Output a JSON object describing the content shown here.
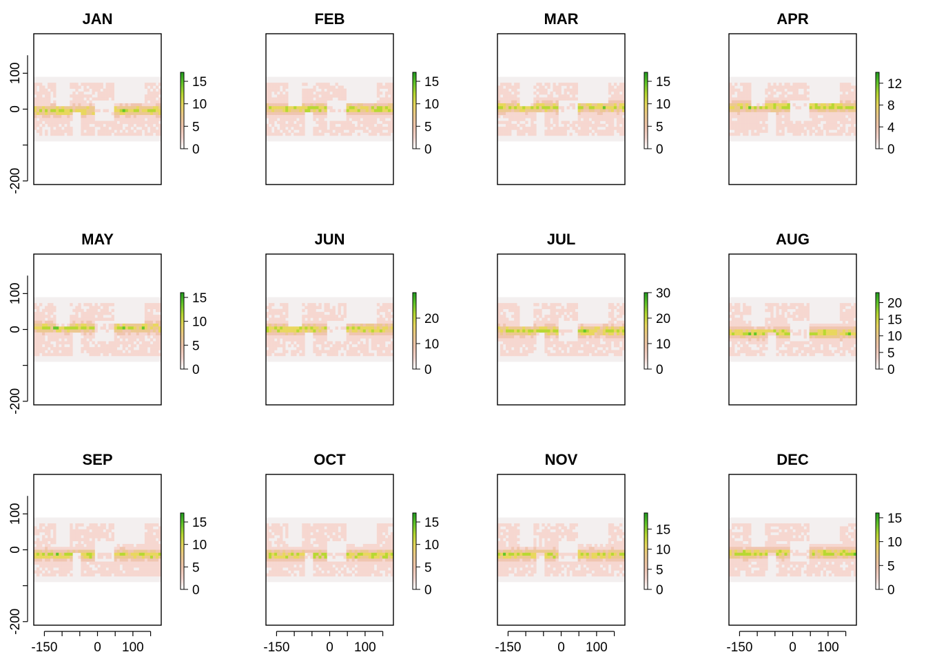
{
  "figure": {
    "x_axis_ticks_labeled": [
      -150,
      0,
      100
    ],
    "x_axis_ticks_all": [
      -150,
      -100,
      -50,
      0,
      50,
      100,
      150
    ],
    "y_axis_ticks_labeled": [
      100,
      0,
      -200
    ],
    "y_axis_ticks_all": [
      100,
      0,
      -100,
      -200
    ]
  },
  "chart_data": [
    {
      "type": "heatmap",
      "title": "JAN",
      "xlim": [
        -180,
        180
      ],
      "ylim": [
        -210,
        210
      ],
      "data_lat_range": [
        -90,
        90
      ],
      "legend_ticks": [
        0,
        5,
        10,
        15
      ],
      "legend_max": 17
    },
    {
      "type": "heatmap",
      "title": "FEB",
      "xlim": [
        -180,
        180
      ],
      "ylim": [
        -210,
        210
      ],
      "data_lat_range": [
        -90,
        90
      ],
      "legend_ticks": [
        0,
        5,
        10,
        15
      ],
      "legend_max": 17
    },
    {
      "type": "heatmap",
      "title": "MAR",
      "xlim": [
        -180,
        180
      ],
      "ylim": [
        -210,
        210
      ],
      "data_lat_range": [
        -90,
        90
      ],
      "legend_ticks": [
        0,
        5,
        10,
        15
      ],
      "legend_max": 17
    },
    {
      "type": "heatmap",
      "title": "APR",
      "xlim": [
        -180,
        180
      ],
      "ylim": [
        -210,
        210
      ],
      "data_lat_range": [
        -90,
        90
      ],
      "legend_ticks": [
        0,
        4,
        8,
        12
      ],
      "legend_max": 14
    },
    {
      "type": "heatmap",
      "title": "MAY",
      "xlim": [
        -180,
        180
      ],
      "ylim": [
        -210,
        210
      ],
      "data_lat_range": [
        -90,
        90
      ],
      "legend_ticks": [
        0,
        5,
        10,
        15
      ],
      "legend_max": 16
    },
    {
      "type": "heatmap",
      "title": "JUN",
      "xlim": [
        -180,
        180
      ],
      "ylim": [
        -210,
        210
      ],
      "data_lat_range": [
        -90,
        90
      ],
      "legend_ticks": [
        0,
        10,
        20
      ],
      "legend_max": 30
    },
    {
      "type": "heatmap",
      "title": "JUL",
      "xlim": [
        -180,
        180
      ],
      "ylim": [
        -210,
        210
      ],
      "data_lat_range": [
        -90,
        90
      ],
      "legend_ticks": [
        0,
        10,
        20,
        30
      ],
      "legend_max": 30
    },
    {
      "type": "heatmap",
      "title": "AUG",
      "xlim": [
        -180,
        180
      ],
      "ylim": [
        -210,
        210
      ],
      "data_lat_range": [
        -90,
        90
      ],
      "legend_ticks": [
        0,
        5,
        10,
        15,
        20
      ],
      "legend_max": 23
    },
    {
      "type": "heatmap",
      "title": "SEP",
      "xlim": [
        -180,
        180
      ],
      "ylim": [
        -210,
        210
      ],
      "data_lat_range": [
        -90,
        90
      ],
      "legend_ticks": [
        0,
        5,
        10,
        15
      ],
      "legend_max": 17
    },
    {
      "type": "heatmap",
      "title": "OCT",
      "xlim": [
        -180,
        180
      ],
      "ylim": [
        -210,
        210
      ],
      "data_lat_range": [
        -90,
        90
      ],
      "legend_ticks": [
        0,
        5,
        10,
        15
      ],
      "legend_max": 17
    },
    {
      "type": "heatmap",
      "title": "NOV",
      "xlim": [
        -180,
        180
      ],
      "ylim": [
        -210,
        210
      ],
      "data_lat_range": [
        -90,
        90
      ],
      "legend_ticks": [
        0,
        5,
        10,
        15
      ],
      "legend_max": 19
    },
    {
      "type": "heatmap",
      "title": "DEC",
      "xlim": [
        -180,
        180
      ],
      "ylim": [
        -210,
        210
      ],
      "data_lat_range": [
        -90,
        90
      ],
      "legend_ticks": [
        0,
        5,
        10,
        15
      ],
      "legend_max": 16
    }
  ],
  "colors": {
    "axis": "#000000",
    "background": "#ffffff",
    "nodata": "#f3efef",
    "scale": [
      "#ffffff",
      "#f6d7d0",
      "#f0c5b0",
      "#ecc890",
      "#e9d75e",
      "#b8d832",
      "#64c62a",
      "#1f9a1f"
    ]
  }
}
